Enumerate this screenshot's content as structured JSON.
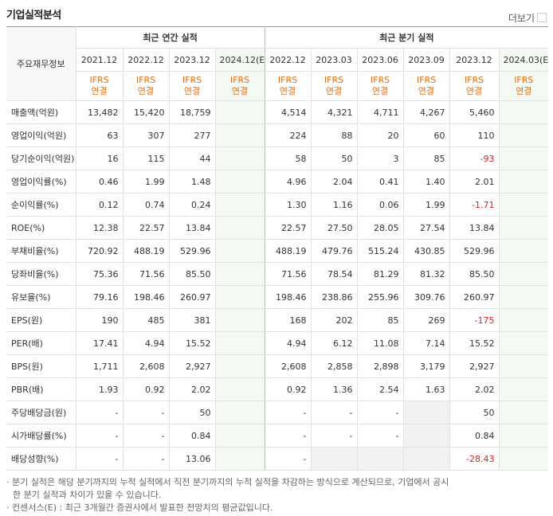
{
  "header": {
    "title": "기업실적분석",
    "more": "더보기"
  },
  "table": {
    "corner": "주요재무정보",
    "annual_title": "최근 연간 실적",
    "quarter_title": "최근 분기 실적",
    "annual_periods": [
      "2021.12",
      "2022.12",
      "2023.12",
      "2024.12(E)"
    ],
    "quarter_periods": [
      "2022.12",
      "2023.03",
      "2023.06",
      "2023.09",
      "2023.12",
      "2024.03(E)"
    ],
    "estimate_flags": [
      false,
      false,
      false,
      true,
      false,
      false,
      false,
      false,
      false,
      true
    ],
    "basis": [
      "IFRS",
      "연결"
    ],
    "rows": [
      {
        "label": "매출액(억원)",
        "cells": [
          "13,482",
          "15,420",
          "18,759",
          null,
          "4,514",
          "4,321",
          "4,711",
          "4,267",
          "5,460",
          null
        ]
      },
      {
        "label": "영업이익(억원)",
        "cells": [
          "63",
          "307",
          "277",
          null,
          "224",
          "88",
          "20",
          "60",
          "110",
          null
        ]
      },
      {
        "label": "당기순이익(억원)",
        "cells": [
          "16",
          "115",
          "44",
          null,
          "58",
          "50",
          "3",
          "85",
          "-93",
          null
        ]
      },
      {
        "label": "영업이익률(%)",
        "cells": [
          "0.46",
          "1.99",
          "1.48",
          null,
          "4.96",
          "2.04",
          "0.41",
          "1.40",
          "2.01",
          null
        ]
      },
      {
        "label": "순이익률(%)",
        "cells": [
          "0.12",
          "0.74",
          "0.24",
          null,
          "1.30",
          "1.16",
          "0.06",
          "1.99",
          "-1.71",
          null
        ]
      },
      {
        "label": "ROE(%)",
        "cells": [
          "12.38",
          "22.57",
          "13.84",
          null,
          "22.57",
          "27.50",
          "28.05",
          "27.54",
          "13.84",
          null
        ]
      },
      {
        "label": "부채비율(%)",
        "cells": [
          "720.92",
          "488.19",
          "529.96",
          null,
          "488.19",
          "479.76",
          "515.24",
          "430.85",
          "529.96",
          null
        ]
      },
      {
        "label": "당좌비율(%)",
        "cells": [
          "75.36",
          "71.56",
          "85.50",
          null,
          "71.56",
          "78.54",
          "81.29",
          "81.32",
          "85.50",
          null
        ]
      },
      {
        "label": "유보율(%)",
        "cells": [
          "79.16",
          "198.46",
          "260.97",
          null,
          "198.46",
          "238.86",
          "255.96",
          "309.76",
          "260.97",
          null
        ]
      },
      {
        "label": "EPS(원)",
        "cells": [
          "190",
          "485",
          "381",
          null,
          "168",
          "202",
          "85",
          "269",
          "-175",
          null
        ]
      },
      {
        "label": "PER(배)",
        "cells": [
          "17.41",
          "4.94",
          "15.52",
          null,
          "4.94",
          "6.12",
          "11.08",
          "7.14",
          "15.52",
          null
        ]
      },
      {
        "label": "BPS(원)",
        "cells": [
          "1,711",
          "2,608",
          "2,927",
          null,
          "2,608",
          "2,858",
          "2,898",
          "3,179",
          "2,927",
          null
        ]
      },
      {
        "label": "PBR(배)",
        "cells": [
          "1.93",
          "0.92",
          "2.02",
          null,
          "0.92",
          "1.36",
          "2.54",
          "1.63",
          "2.02",
          null
        ]
      },
      {
        "label": "주당배당금(원)",
        "cells": [
          "-",
          "-",
          "50",
          null,
          "-",
          "-",
          "-",
          null,
          "50",
          null
        ]
      },
      {
        "label": "시가배당률(%)",
        "cells": [
          "-",
          "-",
          "0.84",
          null,
          "-",
          "-",
          "-",
          null,
          "0.84",
          null
        ]
      },
      {
        "label": "배당성향(%)",
        "cells": [
          "-",
          "-",
          "13.06",
          null,
          "-",
          null,
          null,
          null,
          "-28.43",
          null
        ]
      }
    ]
  },
  "notes": [
    "분기 실적은 해당 분기까지의 누적 실적에서 직전 분기까지의 누적 실적을 차감하는 방식으로 계산되므로, 기업에서 공시한 분기 실적과 차이가 있을 수 있습니다.",
    "컨센서스(E) : 최근 3개월간 증권사에서 발표한 전망치의 평균값입니다."
  ]
}
